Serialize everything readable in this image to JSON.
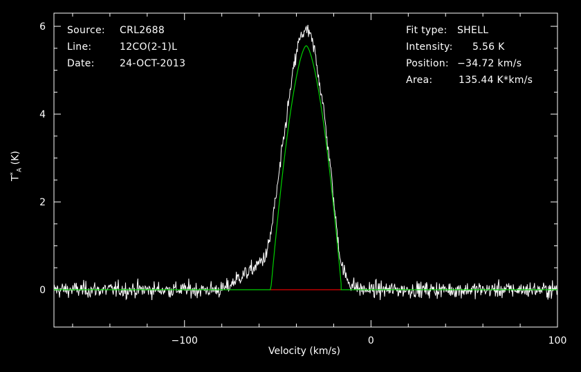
{
  "header_left": {
    "source_label": "Source:",
    "source_value": "CRL2688",
    "line_label": "Line:",
    "line_value": "12CO(2-1)L",
    "date_label": "Date:",
    "date_value": "24-OCT-2013"
  },
  "header_right": {
    "fit_label": "Fit type:",
    "fit_value": "SHELL",
    "intensity_label": "Intensity:",
    "intensity_value": "5.56 K",
    "position_label": "Position:",
    "position_value": "−34.72 km/s",
    "area_label": "Area:",
    "area_value": "135.44 K*km/s"
  },
  "chart_data": {
    "type": "line",
    "xlabel": "Velocity (km/s)",
    "ylabel_main": "T",
    "ylabel_sup": "*",
    "ylabel_sub": "A",
    "ylabel_unit": "(K)",
    "xlim": [
      -170,
      100
    ],
    "ylim": [
      -0.85,
      6.3
    ],
    "x_ticks": [
      -100,
      0,
      100
    ],
    "x_tick_labels": [
      "−100",
      "0",
      "100"
    ],
    "y_ticks": [
      0,
      2,
      4,
      6
    ],
    "y_tick_labels": [
      "0",
      "2",
      "4",
      "6"
    ],
    "colors": {
      "spectrum": "#ffffff",
      "fit": "#00d000",
      "baseline": "#e00000",
      "background": "#000000"
    },
    "spectrum_profile": [
      [
        -170,
        0.0
      ],
      [
        -80,
        0.0
      ],
      [
        -76,
        0.08
      ],
      [
        -72,
        0.25
      ],
      [
        -68,
        0.35
      ],
      [
        -64,
        0.45
      ],
      [
        -60,
        0.6
      ],
      [
        -56,
        0.8
      ],
      [
        -54,
        1.2
      ],
      [
        -50,
        2.4
      ],
      [
        -46,
        3.7
      ],
      [
        -42,
        4.9
      ],
      [
        -39,
        5.6
      ],
      [
        -36,
        5.9
      ],
      [
        -33,
        5.85
      ],
      [
        -30,
        5.4
      ],
      [
        -26,
        4.3
      ],
      [
        -22,
        2.9
      ],
      [
        -19,
        1.6
      ],
      [
        -16,
        0.6
      ],
      [
        -13,
        0.25
      ],
      [
        -10,
        0.1
      ],
      [
        -5,
        0.0
      ],
      [
        100,
        0.0
      ]
    ],
    "spectrum_noise_rms": 0.13,
    "spectrum_channel_width": 0.3,
    "fit": {
      "type": "shell",
      "center": -34.72,
      "peak": 5.56,
      "area": 135.44,
      "points": [
        [
          -170,
          0
        ],
        [
          -54,
          0
        ],
        [
          -34.72,
          5.56
        ],
        [
          -16,
          0
        ],
        [
          100,
          0
        ]
      ]
    },
    "baseline_window": [
      -54,
      -16
    ]
  }
}
